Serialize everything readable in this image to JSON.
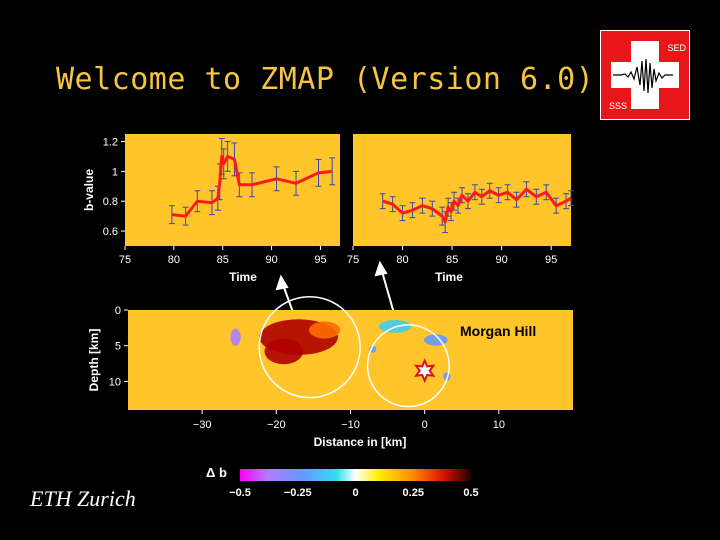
{
  "title": "Welcome to ZMAP (Version 6.0)",
  "logo": {
    "top_label": "SED",
    "bottom_label": "SSS",
    "icon": "seismogram-icon"
  },
  "footer": "ETH Zurich",
  "colors": {
    "background": "#000000",
    "title": "#f5c542",
    "panel": "#ffc52b",
    "series": "#ff1a1a",
    "errorbar": "#3a4aa8",
    "logo_red": "#e8161b"
  },
  "chart_data": [
    {
      "type": "line",
      "xlabel": "Time",
      "ylabel": "b-value",
      "xlim": [
        75,
        97
      ],
      "ylim": [
        0.5,
        1.25
      ],
      "x_ticks": [
        "75",
        "80",
        "85",
        "90",
        "95"
      ],
      "y_ticks": [
        "0.6",
        "0.8",
        "1",
        "1.2"
      ],
      "series": [
        {
          "x": [
            79.8,
            81.2,
            82.4,
            83.9,
            84.5,
            84.7,
            84.9,
            85.1,
            85.5,
            86.2,
            86.7,
            88.0,
            90.5,
            92.5,
            94.8,
            96.2
          ],
          "y": [
            0.71,
            0.7,
            0.8,
            0.79,
            0.82,
            0.93,
            1.1,
            1.05,
            1.1,
            1.08,
            0.91,
            0.91,
            0.95,
            0.92,
            0.99,
            1.0
          ],
          "err": [
            0.06,
            0.06,
            0.07,
            0.08,
            0.08,
            0.12,
            0.12,
            0.1,
            0.1,
            0.11,
            0.08,
            0.08,
            0.08,
            0.08,
            0.09,
            0.09
          ]
        }
      ]
    },
    {
      "type": "line",
      "xlabel": "Time",
      "ylabel": "",
      "xlim": [
        75,
        97
      ],
      "ylim": [
        0.5,
        1.25
      ],
      "x_ticks": [
        "75",
        "80",
        "85",
        "90",
        "95"
      ],
      "y_ticks": [],
      "series": [
        {
          "x": [
            78,
            79,
            80,
            81,
            82,
            83,
            84,
            84.3,
            84.6,
            84.9,
            85.2,
            85.6,
            86,
            86.6,
            87.3,
            88,
            88.8,
            89.7,
            90.6,
            91.5,
            92.5,
            93.5,
            94.5,
            95.5,
            96.5,
            97
          ],
          "y": [
            0.8,
            0.78,
            0.72,
            0.74,
            0.77,
            0.75,
            0.7,
            0.66,
            0.76,
            0.73,
            0.8,
            0.77,
            0.84,
            0.8,
            0.86,
            0.83,
            0.87,
            0.84,
            0.86,
            0.81,
            0.88,
            0.83,
            0.86,
            0.77,
            0.8,
            0.82
          ],
          "err": [
            0.05,
            0.05,
            0.05,
            0.05,
            0.05,
            0.05,
            0.06,
            0.07,
            0.06,
            0.06,
            0.06,
            0.05,
            0.05,
            0.05,
            0.05,
            0.05,
            0.05,
            0.05,
            0.05,
            0.05,
            0.05,
            0.05,
            0.05,
            0.05,
            0.05,
            0.05
          ]
        }
      ]
    },
    {
      "type": "heatmap",
      "title": "",
      "annotation": "Morgan Hill",
      "xlabel": "Distance in [km]",
      "ylabel": "Depth  [km]",
      "xlim": [
        -40,
        20
      ],
      "ylim": [
        14,
        0
      ],
      "x_ticks": [
        "−30",
        "−20",
        "−10",
        "0",
        "10"
      ],
      "y_ticks": [
        "0",
        "5",
        "10"
      ],
      "circles": [
        {
          "cx": -15.5,
          "cy": 5.2,
          "r_km": 6.8
        },
        {
          "cx": -2.2,
          "cy": 7.8,
          "r_km": 5.5
        }
      ],
      "epicenter": {
        "x": 0,
        "y": 8.5
      },
      "anomalies": [
        {
          "cx": -17,
          "cy": 3.8,
          "rx": 5.3,
          "ry": 2.5,
          "value": 0.4
        },
        {
          "cx": -19,
          "cy": 5.8,
          "rx": 2.6,
          "ry": 1.8,
          "value": 0.45
        },
        {
          "cx": -13.5,
          "cy": 2.8,
          "rx": 2.1,
          "ry": 1.2,
          "value": 0.25
        },
        {
          "cx": -25.5,
          "cy": 3.8,
          "rx": 0.7,
          "ry": 1.2,
          "value": -0.3
        },
        {
          "cx": -4,
          "cy": 2.3,
          "rx": 2.2,
          "ry": 0.9,
          "value": -0.15
        },
        {
          "cx": 1.5,
          "cy": 4.2,
          "rx": 1.6,
          "ry": 0.8,
          "value": -0.2
        },
        {
          "cx": 3,
          "cy": 9.3,
          "rx": 0.5,
          "ry": 0.6,
          "value": -0.25
        },
        {
          "cx": -7,
          "cy": 5.5,
          "rx": 0.5,
          "ry": 0.5,
          "value": -0.2
        }
      ]
    },
    {
      "type": "colorbar",
      "label": "Δ b",
      "range": [
        -0.5,
        0.5
      ],
      "ticks": [
        "−0.5",
        "−0.25",
        "0",
        "0.25",
        "0.5"
      ]
    }
  ]
}
